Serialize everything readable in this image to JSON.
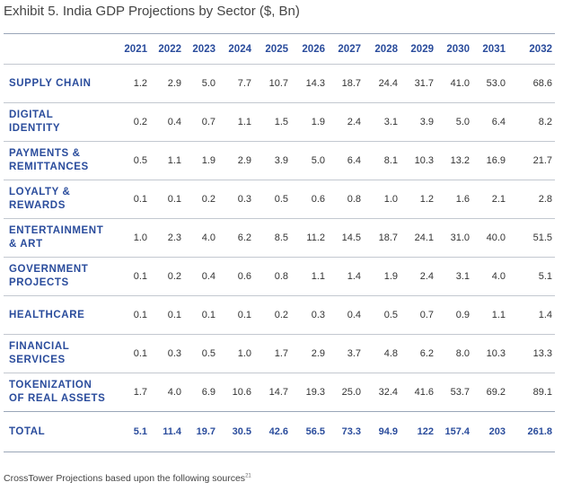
{
  "title": "Exhibit 5. India GDP Projections by Sector ($, Bn)",
  "years": [
    "2021",
    "2022",
    "2023",
    "2024",
    "2025",
    "2026",
    "2027",
    "2028",
    "2029",
    "2030",
    "2031",
    "2032"
  ],
  "rows": [
    {
      "label": [
        "SUPPLY CHAIN"
      ],
      "values": [
        "1.2",
        "2.9",
        "5.0",
        "7.7",
        "10.7",
        "14.3",
        "18.7",
        "24.4",
        "31.7",
        "41.0",
        "53.0",
        "68.6"
      ]
    },
    {
      "label": [
        "DIGITAL",
        "IDENTITY"
      ],
      "values": [
        "0.2",
        "0.4",
        "0.7",
        "1.1",
        "1.5",
        "1.9",
        "2.4",
        "3.1",
        "3.9",
        "5.0",
        "6.4",
        "8.2"
      ]
    },
    {
      "label": [
        "PAYMENTS &",
        "REMITTANCES"
      ],
      "values": [
        "0.5",
        "1.1",
        "1.9",
        "2.9",
        "3.9",
        "5.0",
        "6.4",
        "8.1",
        "10.3",
        "13.2",
        "16.9",
        "21.7"
      ]
    },
    {
      "label": [
        "LOYALTY &",
        "REWARDS"
      ],
      "values": [
        "0.1",
        "0.1",
        "0.2",
        "0.3",
        "0.5",
        "0.6",
        "0.8",
        "1.0",
        "1.2",
        "1.6",
        "2.1",
        "2.8"
      ]
    },
    {
      "label": [
        "ENTERTAINMENT",
        "& ART"
      ],
      "values": [
        "1.0",
        "2.3",
        "4.0",
        "6.2",
        "8.5",
        "11.2",
        "14.5",
        "18.7",
        "24.1",
        "31.0",
        "40.0",
        "51.5"
      ]
    },
    {
      "label": [
        "GOVERNMENT",
        "PROJECTS"
      ],
      "values": [
        "0.1",
        "0.2",
        "0.4",
        "0.6",
        "0.8",
        "1.1",
        "1.4",
        "1.9",
        "2.4",
        "3.1",
        "4.0",
        "5.1"
      ]
    },
    {
      "label": [
        "HEALTHCARE"
      ],
      "values": [
        "0.1",
        "0.1",
        "0.1",
        "0.1",
        "0.2",
        "0.3",
        "0.4",
        "0.5",
        "0.7",
        "0.9",
        "1.1",
        "1.4"
      ]
    },
    {
      "label": [
        "FINANCIAL",
        "SERVICES"
      ],
      "values": [
        "0.1",
        "0.3",
        "0.5",
        "1.0",
        "1.7",
        "2.9",
        "3.7",
        "4.8",
        "6.2",
        "8.0",
        "10.3",
        "13.3"
      ]
    },
    {
      "label": [
        "TOKENIZATION",
        "OF REAL ASSETS"
      ],
      "values": [
        "1.7",
        "4.0",
        "6.9",
        "10.6",
        "14.7",
        "19.3",
        "25.0",
        "32.4",
        "41.6",
        "53.7",
        "69.2",
        "89.1"
      ]
    }
  ],
  "total": {
    "label": "TOTAL",
    "values": [
      "5.1",
      "11.4",
      "19.7",
      "30.5",
      "42.6",
      "56.5",
      "73.3",
      "94.9",
      "122",
      "157.4",
      "203",
      "261.8"
    ]
  },
  "footnote": {
    "text": "CrossTower Projections based upon the following sources",
    "ref": "21"
  },
  "colors": {
    "accent": "#2a4c9c",
    "rule": "#9aa6b8",
    "text": "#333333"
  }
}
